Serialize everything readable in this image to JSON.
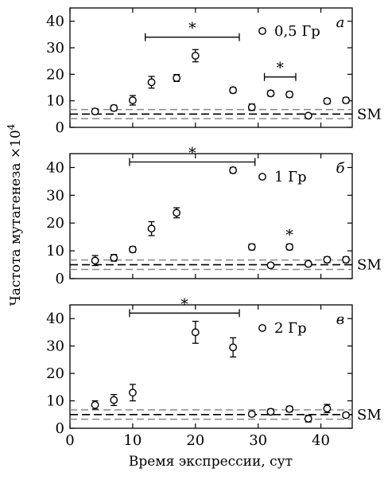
{
  "figure": {
    "ylabel": "Частота мутагенеза ×10",
    "ylabel_exp": "4",
    "xlabel": "Время экспрессии, сут",
    "sm_label": "SM"
  },
  "chart_data": [
    {
      "type": "scatter",
      "panel_letter": "а",
      "legend": "0,5 Гр",
      "legend_marker": "circle",
      "xlim": [
        0,
        45
      ],
      "ylim": [
        0,
        45
      ],
      "xticks": [
        0,
        10,
        20,
        30,
        40
      ],
      "yticks": [
        0,
        10,
        20,
        30,
        40
      ],
      "show_xtick_labels": false,
      "x": [
        4,
        7,
        10,
        13,
        17,
        20,
        26,
        29,
        32,
        35,
        38,
        41,
        44
      ],
      "y": [
        6,
        7.3,
        10.2,
        17,
        18.6,
        27,
        14,
        7.6,
        12.8,
        12.4,
        4.4,
        9.9,
        10.2
      ],
      "err": [
        1.0,
        1.0,
        1.8,
        2.2,
        1.3,
        2.3,
        1.0,
        1.2,
        1.0,
        1.0,
        0.8,
        1.0,
        1.0
      ],
      "sm": {
        "mean": 5,
        "lower": 3.3,
        "upper": 6.7
      },
      "significance": [
        {
          "label": "*",
          "x_start": 12,
          "x_end": 27,
          "y": 34
        },
        {
          "label": "*",
          "x_start": 31,
          "x_end": 36,
          "y": 19
        }
      ]
    },
    {
      "type": "scatter",
      "panel_letter": "б",
      "legend": "1 Гр",
      "legend_marker": "circle",
      "xlim": [
        0,
        45
      ],
      "ylim": [
        0,
        45
      ],
      "xticks": [
        0,
        10,
        20,
        30,
        40
      ],
      "yticks": [
        0,
        10,
        20,
        30,
        40
      ],
      "show_xtick_labels": false,
      "x": [
        4,
        7,
        10,
        13,
        17,
        26,
        29,
        32,
        35,
        38,
        41,
        44
      ],
      "y": [
        6.5,
        7.5,
        10.5,
        18,
        23.7,
        39,
        11.4,
        4.8,
        11.4,
        5.3,
        6.8,
        6.8
      ],
      "err": [
        1.8,
        1.2,
        1.0,
        2.5,
        1.8,
        1.0,
        1.0,
        0.8,
        1.0,
        0.8,
        1.0,
        1.0
      ],
      "sm": {
        "mean": 5,
        "lower": 3.3,
        "upper": 6.7
      },
      "significance": [
        {
          "label": "*",
          "x_start": 9.5,
          "x_end": 29.5,
          "y": 42
        },
        {
          "label": "*",
          "x_start": 35,
          "x_end": 35,
          "y": 15
        }
      ]
    },
    {
      "type": "scatter",
      "panel_letter": "в",
      "legend": "2 Гр",
      "legend_marker": "circle",
      "xlim": [
        0,
        45
      ],
      "ylim": [
        0,
        45
      ],
      "xticks": [
        0,
        10,
        20,
        30,
        40
      ],
      "yticks": [
        0,
        10,
        20,
        30,
        40
      ],
      "show_xtick_labels": true,
      "x": [
        4,
        7,
        10,
        20,
        26,
        29,
        32,
        35,
        38,
        41,
        44
      ],
      "y": [
        8.5,
        10.3,
        13,
        35,
        29.5,
        5.2,
        6,
        7,
        3.5,
        7.2,
        4.8
      ],
      "err": [
        1.5,
        2.0,
        3.0,
        4.0,
        3.5,
        0.8,
        1.0,
        1.0,
        1.2,
        1.5,
        0.8
      ],
      "sm": {
        "mean": 5,
        "lower": 3.3,
        "upper": 6.7
      },
      "significance": [
        {
          "label": "*",
          "x_start": 9.5,
          "x_end": 27,
          "y": 42
        }
      ]
    }
  ]
}
